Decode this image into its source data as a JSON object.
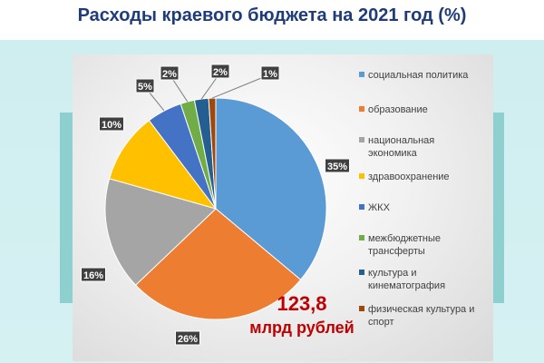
{
  "title": "Расходы краевого бюджета на 2021 год (%)",
  "total": {
    "value": "123,8",
    "unit": "млрд рублей"
  },
  "chart_data": {
    "type": "pie",
    "title": "Расходы краевого бюджета на 2021 год (%)",
    "legend_position": "right",
    "slices": [
      {
        "name": "социальная политика",
        "value": 35,
        "label": "35%",
        "color": "#5b9bd5"
      },
      {
        "name": "образование",
        "value": 26,
        "label": "26%",
        "color": "#ed7d31"
      },
      {
        "name": "национальная экономика",
        "value": 16,
        "label": "16%",
        "color": "#a5a5a5"
      },
      {
        "name": "здравоохранение",
        "value": 10,
        "label": "10%",
        "color": "#ffc000"
      },
      {
        "name": "ЖКХ",
        "value": 5,
        "label": "5%",
        "color": "#4472c4"
      },
      {
        "name": "межбюджетные трансферты",
        "value": 2,
        "label": "2%",
        "color": "#70ad47"
      },
      {
        "name": "культура и кинематография",
        "value": 2,
        "label": "2%",
        "color": "#255e91"
      },
      {
        "name": "физическая культура и спорт",
        "value": 1,
        "label": "1%",
        "color": "#9e480e"
      }
    ]
  }
}
